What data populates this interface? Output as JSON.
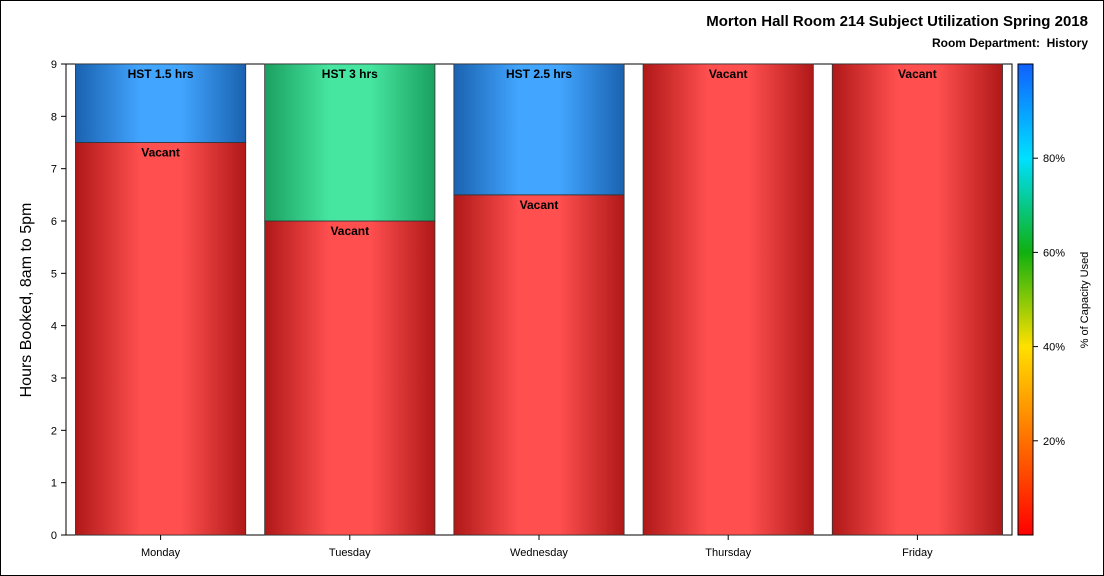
{
  "title": "Morton Hall Room 214 Subject Utilization Spring 2018",
  "subtitle": "Room Department:  History",
  "colors": {
    "vacant": "#ff4f4f",
    "vacant_edge": "#b01818",
    "hst_blue": "#42a5ff",
    "hst_blue_edge": "#1a62b0",
    "hst_green": "#46e6a0",
    "hst_green_edge": "#1aa060"
  },
  "chart_data": {
    "type": "bar",
    "stacked": true,
    "categories": [
      "Monday",
      "Tuesday",
      "Wednesday",
      "Thursday",
      "Friday"
    ],
    "series": [
      {
        "name": "Vacant",
        "values": [
          7.5,
          6,
          6.5,
          9,
          9
        ],
        "labels": [
          "Vacant",
          "Vacant",
          "Vacant",
          "Vacant",
          "Vacant"
        ],
        "color_key": "vacant"
      },
      {
        "name": "HST",
        "values": [
          1.5,
          3,
          2.5,
          0,
          0
        ],
        "labels": [
          "HST 1.5 hrs",
          "HST 3 hrs",
          "HST 2.5 hrs",
          "",
          ""
        ],
        "color_keys": [
          "hst_blue",
          "hst_green",
          "hst_blue",
          "hst_blue",
          "hst_blue"
        ]
      }
    ],
    "ylabel": "Hours Booked, 8am to 5pm",
    "xlabel": "",
    "ylim": [
      0,
      9
    ],
    "yticks": [
      0,
      1,
      2,
      3,
      4,
      5,
      6,
      7,
      8,
      9
    ],
    "grid": false,
    "legend": {
      "type": "colorbar",
      "placement": "right",
      "title": "% of Capacity Used",
      "range": [
        0,
        100
      ],
      "ticks": [
        20,
        40,
        60,
        80
      ],
      "tick_labels": [
        "20%",
        "40%",
        "60%",
        "80%"
      ],
      "stops": [
        "#ff0000",
        "#ff7000",
        "#ffe000",
        "#10b010",
        "#00e0ff",
        "#1060ff"
      ]
    }
  }
}
